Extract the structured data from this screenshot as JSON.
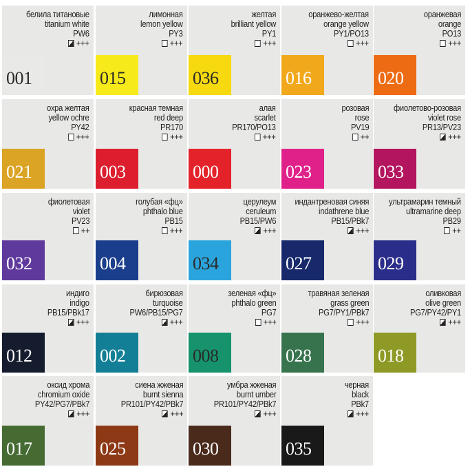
{
  "colors": [
    {
      "ru": "белила титановые",
      "en": "titanium white",
      "pigment": "PW6",
      "box": "semi",
      "rating": "+++",
      "num": "001",
      "swatch": "#e9e9e8",
      "text": "dark"
    },
    {
      "ru": "лимонная",
      "en": "lemon yellow",
      "pigment": "PY3",
      "box": "empty",
      "rating": "+++",
      "num": "015",
      "swatch": "#f6ea1a",
      "text": "dark"
    },
    {
      "ru": "желтая",
      "en": "brilliant yellow",
      "pigment": "PY1",
      "box": "empty",
      "rating": "+++",
      "num": "036",
      "swatch": "#f6d90f",
      "text": "dark"
    },
    {
      "ru": "оранжево-желтая",
      "en": "orange yellow",
      "pigment": "PY1/PO13",
      "box": "empty",
      "rating": "+++",
      "num": "016",
      "swatch": "#f1a81b",
      "text": "light"
    },
    {
      "ru": "оранжевая",
      "en": "orange",
      "pigment": "PO13",
      "box": "empty",
      "rating": "+++",
      "num": "020",
      "swatch": "#ec6b13",
      "text": "light"
    },
    {
      "ru": "охра желтая",
      "en": "yellow ochre",
      "pigment": "PY42",
      "box": "empty",
      "rating": "+++",
      "num": "021",
      "swatch": "#dca425",
      "text": "light"
    },
    {
      "ru": "красная темная",
      "en": "red deep",
      "pigment": "PR170",
      "box": "empty",
      "rating": "+++",
      "num": "003",
      "swatch": "#dc1e2e",
      "text": "light"
    },
    {
      "ru": "алая",
      "en": "scarlet",
      "pigment": "PR170/PO13",
      "box": "empty",
      "rating": "+++",
      "num": "000",
      "swatch": "#e3222a",
      "text": "light"
    },
    {
      "ru": "розовая",
      "en": "rose",
      "pigment": "PV19",
      "box": "empty",
      "rating": "++",
      "num": "023",
      "swatch": "#e0218a",
      "text": "light"
    },
    {
      "ru": "фиолетово-розовая",
      "en": "violet rose",
      "pigment": "PR13/PV23",
      "box": "semi",
      "rating": "+++",
      "num": "033",
      "swatch": "#b3155e",
      "text": "light"
    },
    {
      "ru": "фиолетовая",
      "en": "violet",
      "pigment": "PV23",
      "box": "empty",
      "rating": "++",
      "num": "032",
      "swatch": "#5f3a9c",
      "text": "light"
    },
    {
      "ru": "голубая «фц»",
      "en": "phthalo blue",
      "pigment": "PB15",
      "box": "empty",
      "rating": "+++",
      "num": "004",
      "swatch": "#1b3e8c",
      "text": "light"
    },
    {
      "ru": "церулеум",
      "en": "ceruleum",
      "pigment": "PB15/PW6",
      "box": "semi",
      "rating": "+++",
      "num": "034",
      "swatch": "#2aa4dc",
      "text": "dark"
    },
    {
      "ru": "индантреновая синяя",
      "en": "indathrene blue",
      "pigment": "PB15/PBk7",
      "box": "semi",
      "rating": "+++",
      "num": "027",
      "swatch": "#17296b",
      "text": "light"
    },
    {
      "ru": "ультрамарин темный",
      "en": "ultramarine deep",
      "pigment": "PB29",
      "box": "empty",
      "rating": "++",
      "num": "029",
      "swatch": "#2b2d8a",
      "text": "light"
    },
    {
      "ru": "индиго",
      "en": "indigo",
      "pigment": "PB15/PBk17",
      "box": "semi",
      "rating": "+++",
      "num": "012",
      "swatch": "#141c2e",
      "text": "light"
    },
    {
      "ru": "бирюзовая",
      "en": "turquoise",
      "pigment": "PW6/PB15/PG7",
      "box": "semi",
      "rating": "+++",
      "num": "002",
      "swatch": "#137f96",
      "text": "light"
    },
    {
      "ru": "зеленая «фц»",
      "en": "phthalo green",
      "pigment": "PG7",
      "box": "empty",
      "rating": "+++",
      "num": "008",
      "swatch": "#16936c",
      "text": "dark"
    },
    {
      "ru": "травяная зеленая",
      "en": "grass green",
      "pigment": "PG7/PY1/PBk7",
      "box": "empty",
      "rating": "+++",
      "num": "028",
      "swatch": "#37744e",
      "text": "light"
    },
    {
      "ru": "оливковая",
      "en": "olive green",
      "pigment": "PG7/PY42/PY1",
      "box": "semi",
      "rating": "+++",
      "num": "018",
      "swatch": "#8f9a26",
      "text": "light"
    },
    {
      "ru": "оксид хрома",
      "en": "chromium oxide",
      "pigment": "PY42/PG7/PBk7",
      "box": "semi",
      "rating": "+++",
      "num": "017",
      "swatch": "#456b33",
      "text": "light"
    },
    {
      "ru": "сиена жженая",
      "en": "burnt sienna",
      "pigment": "PR101/PY42/PBk7",
      "box": "semi",
      "rating": "+++",
      "num": "025",
      "swatch": "#8e3916",
      "text": "light"
    },
    {
      "ru": "умбра жженая",
      "en": "burnt umber",
      "pigment": "PR101/PY42/PBk7",
      "box": "semi",
      "rating": "+++",
      "num": "030",
      "swatch": "#4a2a1b",
      "text": "light"
    },
    {
      "ru": "черная",
      "en": "black",
      "pigment": "PBk7",
      "box": "semi",
      "rating": "+++",
      "num": "035",
      "swatch": "#191919",
      "text": "light"
    }
  ]
}
